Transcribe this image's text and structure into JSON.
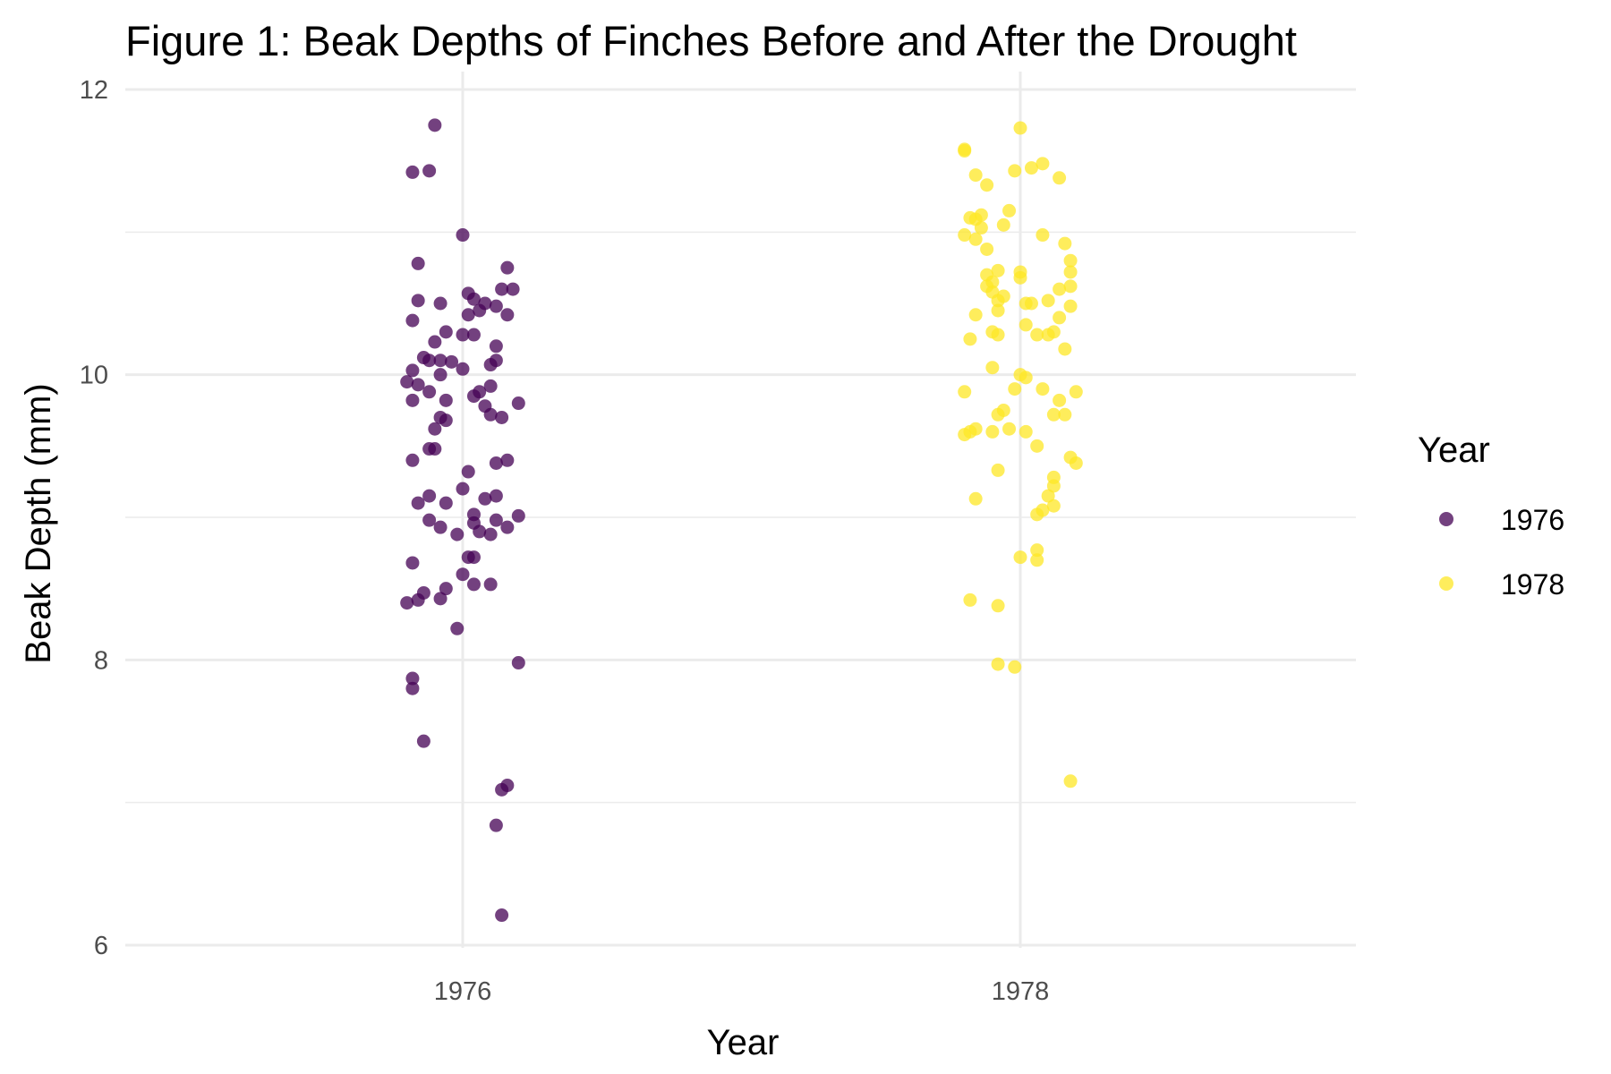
{
  "chart_data": {
    "type": "scatter",
    "title": "Figure 1: Beak Depths of Finches Before and After the Drought",
    "xlabel": "Year",
    "ylabel": "Beak Depth (mm)",
    "categories": [
      "1976",
      "1978"
    ],
    "ylim": [
      6,
      12
    ],
    "yticks": [
      6,
      8,
      10,
      12
    ],
    "grid": true,
    "legend": {
      "title": "Year",
      "position": "right"
    },
    "colors": {
      "1976": "#440154",
      "1978": "#FDE725"
    },
    "series": [
      {
        "name": "1976",
        "points": [
          [
            -0.05,
            11.75
          ],
          [
            -0.06,
            11.43
          ],
          [
            -0.09,
            11.42
          ],
          [
            0.0,
            10.98
          ],
          [
            -0.08,
            10.78
          ],
          [
            0.08,
            10.75
          ],
          [
            0.07,
            10.6
          ],
          [
            0.09,
            10.6
          ],
          [
            0.01,
            10.57
          ],
          [
            0.02,
            10.53
          ],
          [
            -0.08,
            10.52
          ],
          [
            -0.04,
            10.5
          ],
          [
            0.04,
            10.5
          ],
          [
            0.06,
            10.48
          ],
          [
            0.03,
            10.45
          ],
          [
            0.01,
            10.42
          ],
          [
            0.08,
            10.42
          ],
          [
            -0.09,
            10.38
          ],
          [
            -0.03,
            10.3
          ],
          [
            0.0,
            10.28
          ],
          [
            0.02,
            10.28
          ],
          [
            -0.05,
            10.23
          ],
          [
            0.06,
            10.2
          ],
          [
            -0.07,
            10.12
          ],
          [
            -0.04,
            10.1
          ],
          [
            0.06,
            10.1
          ],
          [
            -0.06,
            10.1
          ],
          [
            -0.02,
            10.09
          ],
          [
            0.05,
            10.07
          ],
          [
            0.0,
            10.04
          ],
          [
            -0.09,
            10.03
          ],
          [
            -0.04,
            10.0
          ],
          [
            -0.1,
            9.95
          ],
          [
            -0.08,
            9.93
          ],
          [
            0.05,
            9.92
          ],
          [
            -0.06,
            9.88
          ],
          [
            0.03,
            9.88
          ],
          [
            0.02,
            9.85
          ],
          [
            -0.09,
            9.82
          ],
          [
            -0.03,
            9.82
          ],
          [
            0.04,
            9.78
          ],
          [
            0.1,
            9.8
          ],
          [
            0.05,
            9.72
          ],
          [
            0.07,
            9.7
          ],
          [
            -0.04,
            9.7
          ],
          [
            -0.03,
            9.68
          ],
          [
            -0.05,
            9.62
          ],
          [
            -0.06,
            9.48
          ],
          [
            -0.05,
            9.48
          ],
          [
            0.08,
            9.4
          ],
          [
            -0.09,
            9.4
          ],
          [
            0.06,
            9.38
          ],
          [
            0.01,
            9.32
          ],
          [
            0.0,
            9.2
          ],
          [
            0.06,
            9.15
          ],
          [
            0.04,
            9.13
          ],
          [
            -0.06,
            9.15
          ],
          [
            -0.08,
            9.1
          ],
          [
            -0.03,
            9.1
          ],
          [
            0.02,
            9.02
          ],
          [
            0.1,
            9.01
          ],
          [
            -0.06,
            8.98
          ],
          [
            0.06,
            8.98
          ],
          [
            0.02,
            8.96
          ],
          [
            -0.04,
            8.93
          ],
          [
            0.08,
            8.93
          ],
          [
            0.03,
            8.9
          ],
          [
            0.05,
            8.88
          ],
          [
            -0.01,
            8.88
          ],
          [
            0.01,
            8.72
          ],
          [
            0.02,
            8.72
          ],
          [
            -0.09,
            8.68
          ],
          [
            0.0,
            8.6
          ],
          [
            0.02,
            8.53
          ],
          [
            0.05,
            8.53
          ],
          [
            -0.03,
            8.5
          ],
          [
            -0.07,
            8.47
          ],
          [
            -0.04,
            8.43
          ],
          [
            -0.08,
            8.42
          ],
          [
            -0.1,
            8.4
          ],
          [
            -0.01,
            8.22
          ],
          [
            0.1,
            7.98
          ],
          [
            -0.09,
            7.87
          ],
          [
            -0.09,
            7.8
          ],
          [
            -0.07,
            7.43
          ],
          [
            0.08,
            7.12
          ],
          [
            0.07,
            7.09
          ],
          [
            0.06,
            6.84
          ],
          [
            0.07,
            6.21
          ]
        ]
      },
      {
        "name": "1978",
        "points": [
          [
            0.0,
            11.73
          ],
          [
            -0.1,
            11.58
          ],
          [
            -0.1,
            11.57
          ],
          [
            0.04,
            11.48
          ],
          [
            0.02,
            11.45
          ],
          [
            -0.01,
            11.43
          ],
          [
            -0.08,
            11.4
          ],
          [
            0.07,
            11.38
          ],
          [
            -0.06,
            11.33
          ],
          [
            -0.02,
            11.15
          ],
          [
            -0.07,
            11.12
          ],
          [
            -0.09,
            11.1
          ],
          [
            -0.08,
            11.09
          ],
          [
            -0.03,
            11.05
          ],
          [
            -0.07,
            11.03
          ],
          [
            0.04,
            10.98
          ],
          [
            -0.1,
            10.98
          ],
          [
            -0.08,
            10.95
          ],
          [
            0.08,
            10.92
          ],
          [
            -0.06,
            10.88
          ],
          [
            0.09,
            10.8
          ],
          [
            0.09,
            10.72
          ],
          [
            -0.04,
            10.73
          ],
          [
            0.0,
            10.72
          ],
          [
            -0.06,
            10.7
          ],
          [
            0.0,
            10.68
          ],
          [
            -0.05,
            10.65
          ],
          [
            -0.06,
            10.62
          ],
          [
            0.09,
            10.62
          ],
          [
            0.07,
            10.6
          ],
          [
            -0.05,
            10.58
          ],
          [
            -0.03,
            10.55
          ],
          [
            0.05,
            10.52
          ],
          [
            -0.04,
            10.52
          ],
          [
            0.01,
            10.5
          ],
          [
            0.02,
            10.5
          ],
          [
            0.09,
            10.48
          ],
          [
            -0.04,
            10.45
          ],
          [
            -0.08,
            10.42
          ],
          [
            0.07,
            10.4
          ],
          [
            0.01,
            10.35
          ],
          [
            0.06,
            10.3
          ],
          [
            -0.05,
            10.3
          ],
          [
            0.05,
            10.28
          ],
          [
            0.03,
            10.28
          ],
          [
            -0.04,
            10.28
          ],
          [
            -0.09,
            10.25
          ],
          [
            0.08,
            10.18
          ],
          [
            -0.05,
            10.05
          ],
          [
            0.0,
            10.0
          ],
          [
            0.01,
            9.98
          ],
          [
            0.04,
            9.9
          ],
          [
            -0.01,
            9.9
          ],
          [
            0.1,
            9.88
          ],
          [
            -0.1,
            9.88
          ],
          [
            0.07,
            9.82
          ],
          [
            -0.03,
            9.75
          ],
          [
            0.08,
            9.72
          ],
          [
            -0.04,
            9.72
          ],
          [
            0.06,
            9.72
          ],
          [
            -0.08,
            9.62
          ],
          [
            -0.05,
            9.6
          ],
          [
            -0.02,
            9.62
          ],
          [
            -0.09,
            9.6
          ],
          [
            0.01,
            9.6
          ],
          [
            -0.1,
            9.58
          ],
          [
            0.03,
            9.5
          ],
          [
            0.09,
            9.42
          ],
          [
            0.1,
            9.38
          ],
          [
            -0.04,
            9.33
          ],
          [
            0.06,
            9.28
          ],
          [
            0.06,
            9.22
          ],
          [
            0.05,
            9.15
          ],
          [
            -0.08,
            9.13
          ],
          [
            0.06,
            9.08
          ],
          [
            0.04,
            9.05
          ],
          [
            0.03,
            9.02
          ],
          [
            0.03,
            8.77
          ],
          [
            0.0,
            8.72
          ],
          [
            0.03,
            8.7
          ],
          [
            -0.09,
            8.42
          ],
          [
            -0.04,
            8.38
          ],
          [
            -0.04,
            7.97
          ],
          [
            -0.01,
            7.95
          ],
          [
            0.09,
            7.15
          ]
        ]
      }
    ]
  }
}
